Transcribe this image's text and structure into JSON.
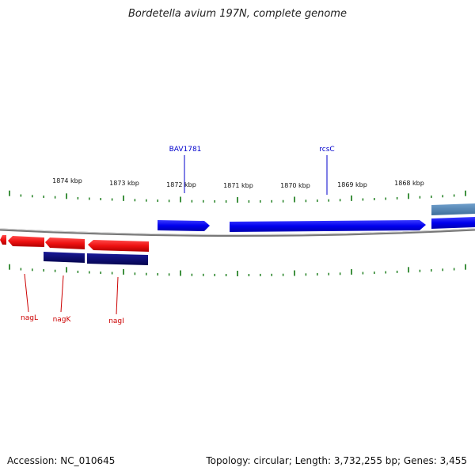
{
  "title": "Bordetella avium 197N, complete genome",
  "footer": {
    "accession": "Accession: NC_010645",
    "info": "Topology: circular; Length: 3,732,255 bp; Genes: 3,455"
  },
  "colors": {
    "forward_gene": "#0000ee",
    "forward_gene_light": "#4f86b8",
    "reverse_gene": "#ee1111",
    "reverse_gene_dark": "#0a0a78",
    "tick": "#117711",
    "forward_label": "#0000cc",
    "reverse_label": "#cc0000",
    "backbone": "#888888"
  },
  "scale_labels": [
    {
      "text": "1874 kbp",
      "kbp": 1874
    },
    {
      "text": "1873 kbp",
      "kbp": 1873
    },
    {
      "text": "1872 kbp",
      "kbp": 1872
    },
    {
      "text": "1871 kbp",
      "kbp": 1871
    },
    {
      "text": "1870 kbp",
      "kbp": 1870
    },
    {
      "text": "1869 kbp",
      "kbp": 1869
    },
    {
      "text": "1868 kbp",
      "kbp": 1868
    }
  ],
  "genes_forward": [
    {
      "label": "BAV1781",
      "start_kbp": 1872.4,
      "end_kbp": 1871.5
    },
    {
      "label": "rcsC",
      "start_kbp": 1871.2,
      "end_kbp": 1867.9
    },
    {
      "label": "",
      "start_kbp": 1867.8,
      "end_kbp": 1867.0
    },
    {
      "label": "",
      "start_kbp": 1867.8,
      "end_kbp": 1867.0
    }
  ],
  "genes_reverse": [
    {
      "label": "",
      "start_kbp": 1875.1,
      "end_kbp": 1875.0
    },
    {
      "label": "nagL",
      "start_kbp": 1874.9,
      "end_kbp": 1874.3
    },
    {
      "label": "nagK",
      "start_kbp": 1874.3,
      "end_kbp": 1873.6
    },
    {
      "label": "nagI",
      "start_kbp": 1873.5,
      "end_kbp": 1872.5
    }
  ],
  "genes_reverse_inner": [
    {
      "label": "",
      "start_kbp": 1874.3,
      "end_kbp": 1873.6
    },
    {
      "label": "",
      "start_kbp": 1873.5,
      "end_kbp": 1872.5
    }
  ]
}
